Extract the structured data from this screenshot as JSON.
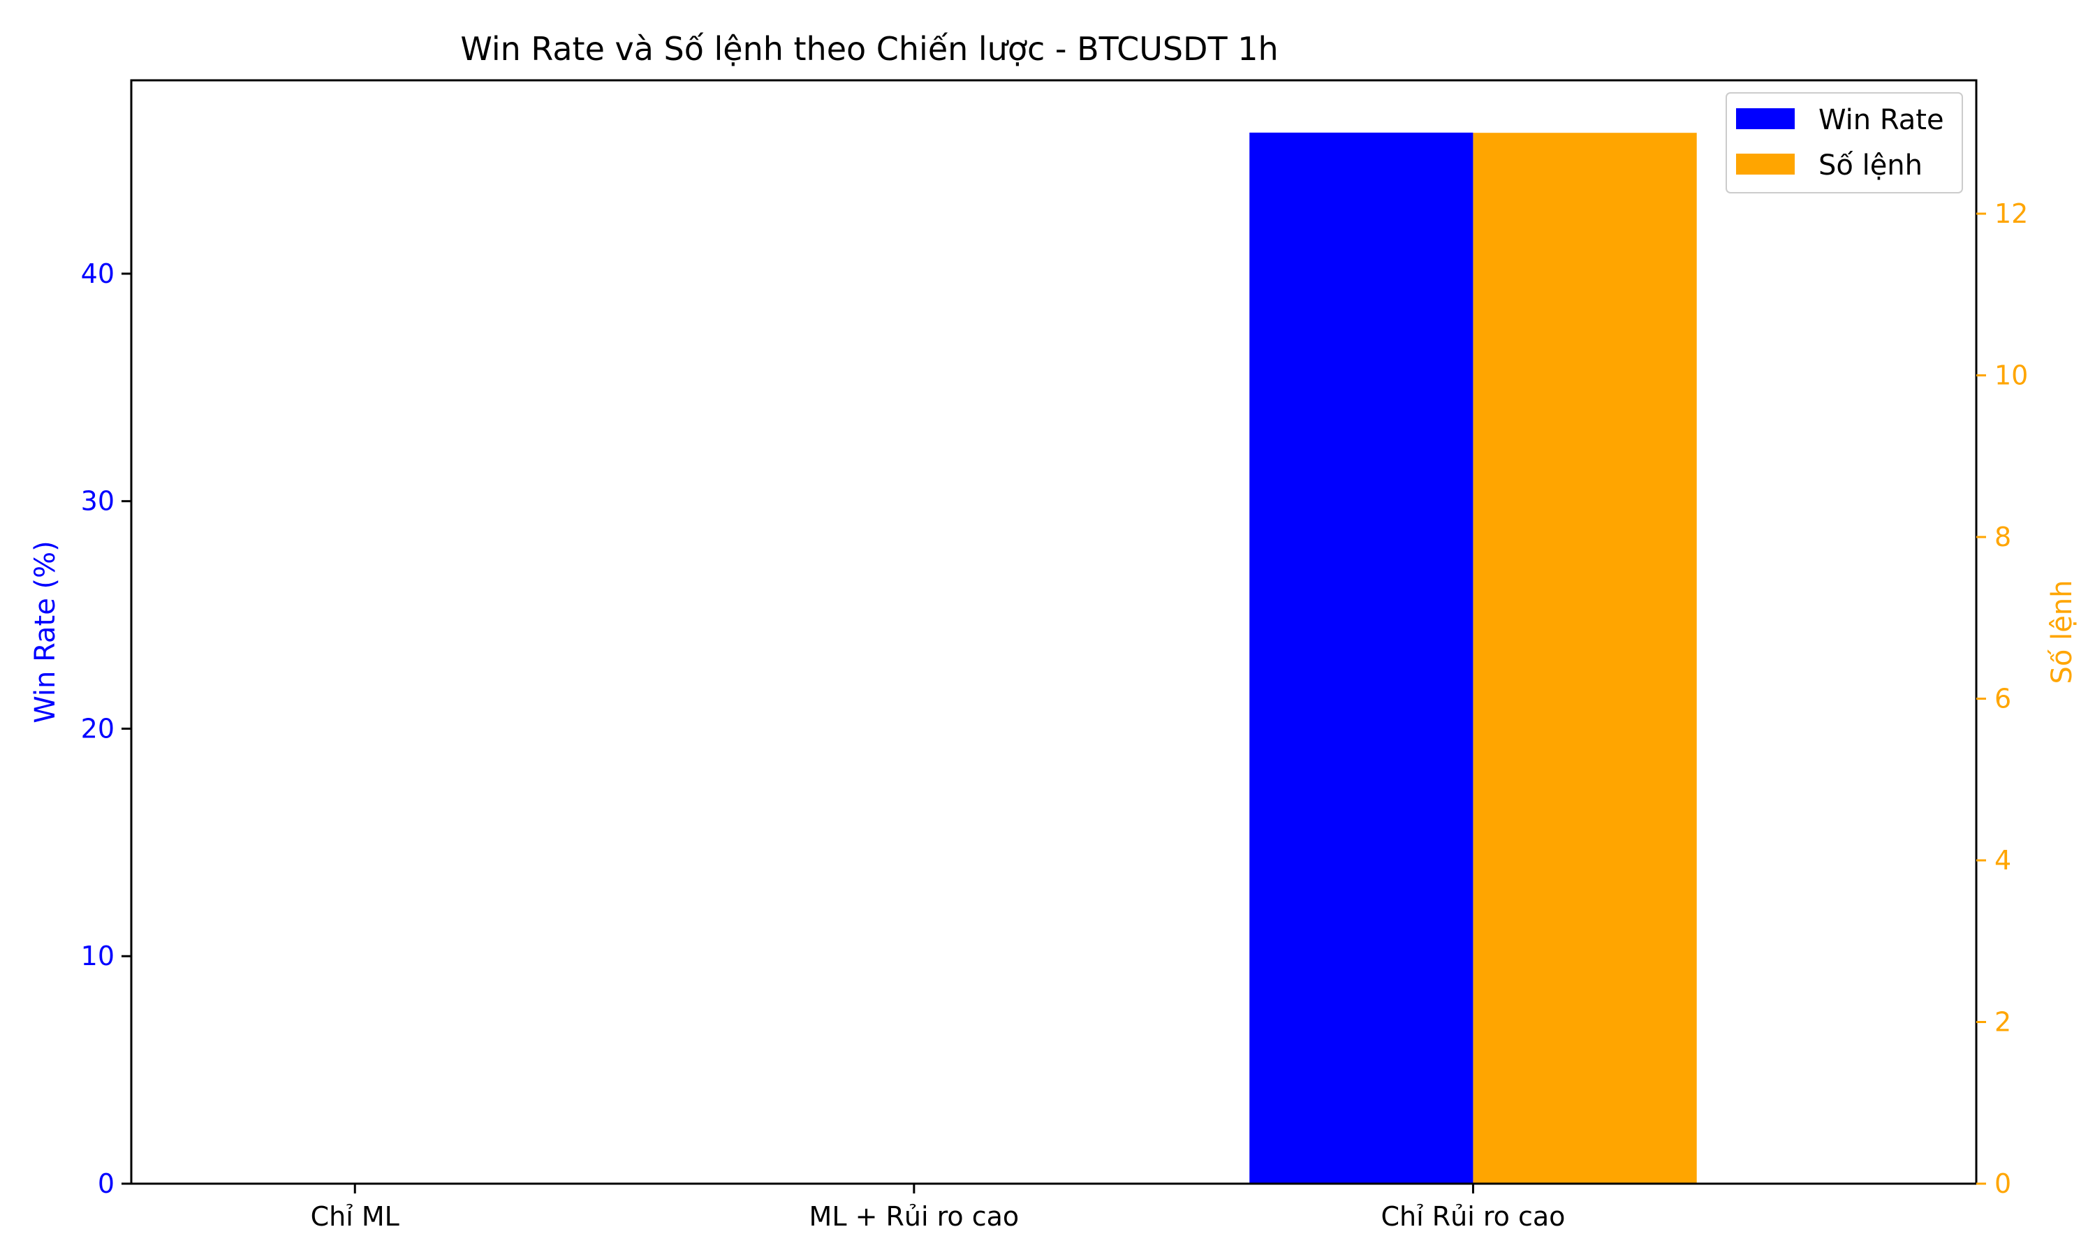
{
  "chart_data": {
    "type": "bar",
    "title": "Win Rate và Số lệnh theo Chiến lược - BTCUSDT 1h",
    "categories": [
      "Chỉ ML",
      "ML + Rủi ro cao",
      "Chỉ Rủi ro cao"
    ],
    "series": [
      {
        "name": "Win Rate",
        "axis": "left",
        "color": "#0000ff",
        "values": [
          0,
          0,
          46.2
        ]
      },
      {
        "name": "Số lệnh",
        "axis": "right",
        "color": "#ffa500",
        "values": [
          0,
          0,
          13
        ]
      }
    ],
    "y_left": {
      "label": "Win Rate (%)",
      "color": "#0000ff",
      "ylim": [
        0,
        48.5
      ],
      "ticks": [
        0,
        10,
        20,
        30,
        40
      ]
    },
    "y_right": {
      "label": "Số lệnh",
      "color": "#ffa500",
      "ylim": [
        0,
        13.65
      ],
      "ticks": [
        0,
        2,
        4,
        6,
        8,
        10,
        12
      ]
    },
    "grid": false,
    "legend": {
      "position": "top-right",
      "entries": [
        "Win Rate",
        "Số lệnh"
      ]
    }
  }
}
